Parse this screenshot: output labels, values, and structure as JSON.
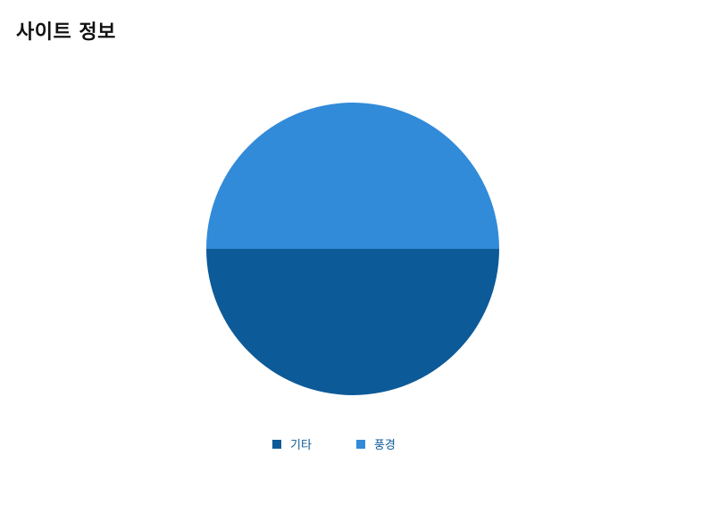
{
  "header": {
    "title": "사이트 정보"
  },
  "chart_data": {
    "type": "pie",
    "title": "",
    "slices": [
      {
        "label": "기타",
        "value": 50,
        "color": "#0d5a98"
      },
      {
        "label": "풍경",
        "value": 50,
        "color": "#318bd9"
      }
    ],
    "start_angle_deg": 0,
    "direction": "clockwise",
    "legend_position": "bottom"
  }
}
